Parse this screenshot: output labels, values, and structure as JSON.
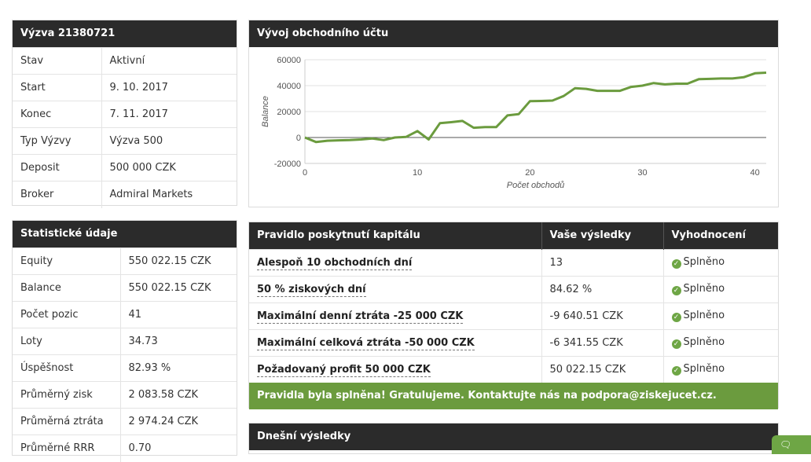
{
  "challenge": {
    "title": "Výzva 21380721",
    "rows": [
      {
        "label": "Stav",
        "value": "Aktivní"
      },
      {
        "label": "Start",
        "value": "9. 10. 2017"
      },
      {
        "label": "Konec",
        "value": "7. 11. 2017"
      },
      {
        "label": "Typ Výzvy",
        "value": "Výzva 500"
      },
      {
        "label": "Deposit",
        "value": "500 000 CZK"
      },
      {
        "label": "Broker",
        "value": "Admiral Markets"
      }
    ]
  },
  "stats": {
    "title": "Statistické údaje",
    "rows": [
      {
        "label": "Equity",
        "value": "550 022.15 CZK"
      },
      {
        "label": "Balance",
        "value": "550 022.15 CZK"
      },
      {
        "label": "Počet pozic",
        "value": "41"
      },
      {
        "label": "Loty",
        "value": "34.73"
      },
      {
        "label": "Úspěšnost",
        "value": "82.93 %"
      },
      {
        "label": "Průměrný zisk",
        "value": "2 083.58 CZK"
      },
      {
        "label": "Průměrná ztráta",
        "value": "2 974.24 CZK"
      },
      {
        "label": "Průměrné RRR",
        "value": "0.70"
      }
    ]
  },
  "chart_panel": {
    "title": "Vývoj obchodního účtu"
  },
  "chart_data": {
    "type": "line",
    "xlabel": "Počet obchodů",
    "ylabel": "Balance",
    "xlim": [
      0,
      41
    ],
    "ylim": [
      -20000,
      60000
    ],
    "x_ticks": [
      0,
      10,
      20,
      30,
      40
    ],
    "y_ticks": [
      -20000,
      0,
      20000,
      40000,
      60000
    ],
    "grid": true,
    "line_color": "#6b9b3e",
    "x": [
      0,
      1,
      2,
      3,
      4,
      5,
      6,
      7,
      8,
      9,
      10,
      11,
      12,
      13,
      14,
      15,
      16,
      17,
      18,
      19,
      20,
      21,
      22,
      23,
      24,
      25,
      26,
      27,
      28,
      29,
      30,
      31,
      32,
      33,
      34,
      35,
      36,
      37,
      38,
      39,
      40,
      41
    ],
    "values": [
      0,
      -3500,
      -2500,
      -2200,
      -2000,
      -1500,
      -800,
      -2000,
      0,
      500,
      5000,
      -1500,
      11000,
      11800,
      12800,
      7500,
      8000,
      8000,
      17000,
      18000,
      28000,
      28200,
      28500,
      32000,
      38000,
      37500,
      36000,
      36000,
      36000,
      39000,
      40000,
      42000,
      41000,
      41500,
      41500,
      45000,
      45200,
      45500,
      45500,
      46500,
      49500,
      50022
    ]
  },
  "rules": {
    "headers": [
      "Pravidlo poskytnutí kapitálu",
      "Vaše výsledky",
      "Vyhodnocení"
    ],
    "rows": [
      {
        "rule": "Alespoň 10 obchodních dní",
        "result": "13",
        "status": "Splněno"
      },
      {
        "rule": "50 % ziskových dní",
        "result": "84.62 %",
        "status": "Splněno"
      },
      {
        "rule": "Maximální denní ztráta -25 000 CZK",
        "result": "-9 640.51 CZK",
        "status": "Splněno"
      },
      {
        "rule": "Maximální celková ztráta -50 000 CZK",
        "result": "-6 341.55 CZK",
        "status": "Splněno"
      },
      {
        "rule": "Požadovaný profit 50 000 CZK",
        "result": "50 022.15 CZK",
        "status": "Splněno"
      }
    ],
    "success_message": "Pravidla byla splněna! Gratulujeme. Kontaktujte nás na podpora@ziskejucet.cz.",
    "status_icon": "check-circle-icon",
    "status_color": "#6ea645"
  },
  "today": {
    "title": "Dnešní výsledky"
  },
  "chat": {
    "icon": "chat-bubble-icon"
  }
}
